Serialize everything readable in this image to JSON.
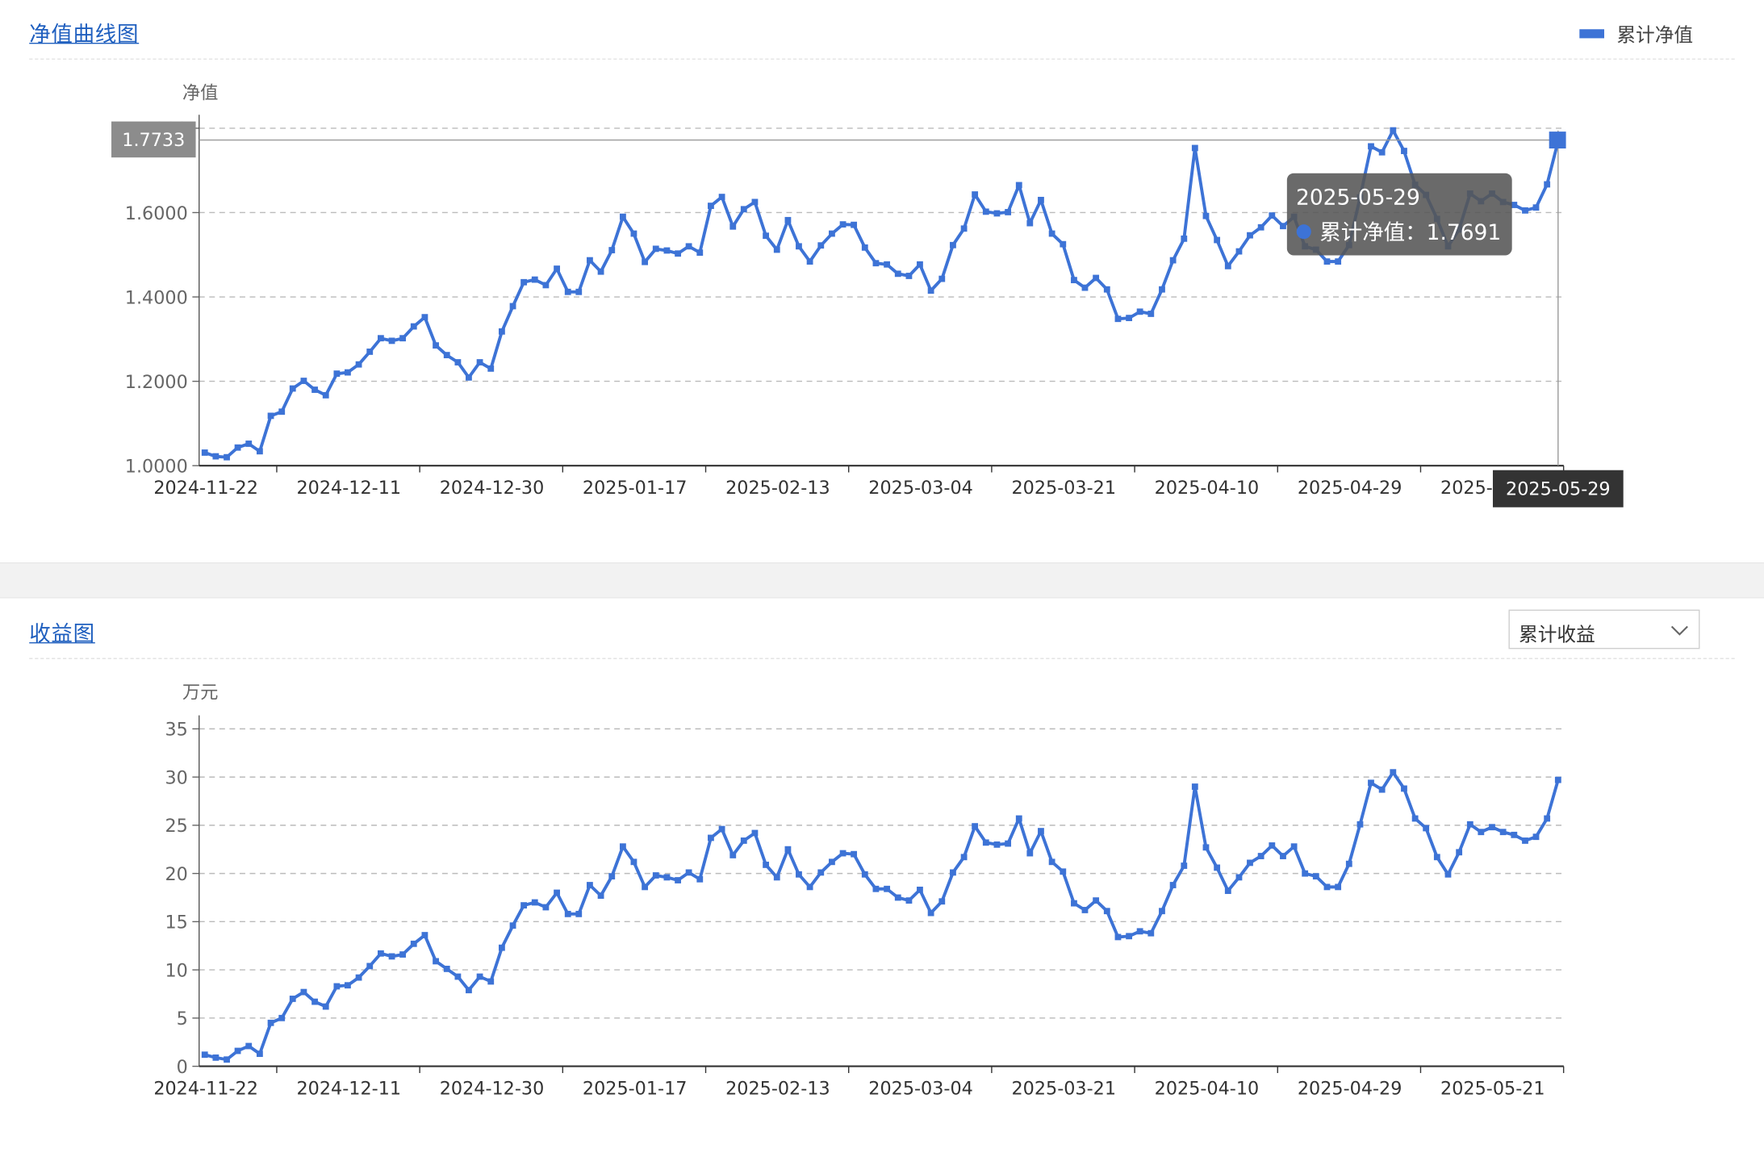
{
  "nav_panel": {
    "title": "净值曲线图",
    "legend_label": "累计净值",
    "y_unit": "净值",
    "y_axis_pointer": "1.7733",
    "x_axis_pointer": "2025-05-29",
    "tooltip": {
      "date": "2025-05-29",
      "series": "累计净值",
      "value": "1.7691"
    }
  },
  "income_panel": {
    "title": "收益图",
    "dropdown_value": "累计收益",
    "y_unit": "万元"
  },
  "colors": {
    "series": "#3d73d6",
    "link": "#1f5fbf",
    "grid": "#bbbbbb"
  },
  "icons": {
    "dropdown": "chevron-down-icon"
  },
  "chart_data": [
    {
      "type": "line",
      "title": "净值曲线图",
      "ylabel": "净值",
      "ylim": [
        1.0,
        1.8
      ],
      "y_ticks": [
        "1.0000",
        "1.2000",
        "1.4000",
        "1.6000",
        "1.8000"
      ],
      "x_ticks": [
        "2024-11-22",
        "2024-12-11",
        "2024-12-30",
        "2025-01-17",
        "2025-02-13",
        "2025-03-04",
        "2025-03-21",
        "2025-04-10",
        "2025-04-29",
        "2025-05-21"
      ],
      "grid": true,
      "legend_position": "top-right",
      "series": [
        {
          "name": "累计净值",
          "values": [
            1.031,
            1.022,
            1.02,
            1.043,
            1.052,
            1.034,
            1.118,
            1.128,
            1.183,
            1.201,
            1.18,
            1.167,
            1.218,
            1.221,
            1.24,
            1.27,
            1.302,
            1.296,
            1.302,
            1.33,
            1.352,
            1.285,
            1.262,
            1.245,
            1.209,
            1.245,
            1.23,
            1.318,
            1.378,
            1.435,
            1.441,
            1.428,
            1.467,
            1.412,
            1.412,
            1.487,
            1.46,
            1.511,
            1.59,
            1.55,
            1.483,
            1.514,
            1.51,
            1.503,
            1.52,
            1.505,
            1.616,
            1.637,
            1.567,
            1.608,
            1.625,
            1.545,
            1.512,
            1.582,
            1.52,
            1.484,
            1.522,
            1.55,
            1.572,
            1.571,
            1.517,
            1.48,
            1.477,
            1.455,
            1.45,
            1.477,
            1.415,
            1.443,
            1.523,
            1.562,
            1.643,
            1.602,
            1.598,
            1.601,
            1.665,
            1.575,
            1.63,
            1.55,
            1.525,
            1.44,
            1.422,
            1.445,
            1.418,
            1.348,
            1.35,
            1.365,
            1.36,
            1.418,
            1.487,
            1.538,
            1.753,
            1.592,
            1.535,
            1.473,
            1.508,
            1.546,
            1.565,
            1.593,
            1.568,
            1.59,
            1.52,
            1.512,
            1.484,
            1.484,
            1.523,
            1.636,
            1.757,
            1.743,
            1.795,
            1.746,
            1.666,
            1.642,
            1.585,
            1.52,
            1.56,
            1.645,
            1.627,
            1.645,
            1.625,
            1.618,
            1.605,
            1.612,
            1.667,
            1.769
          ]
        }
      ]
    },
    {
      "type": "line",
      "title": "收益图",
      "ylabel": "万元",
      "ylim": [
        0,
        35
      ],
      "y_ticks": [
        "0",
        "5",
        "10",
        "15",
        "20",
        "25",
        "30",
        "35"
      ],
      "x_ticks": [
        "2024-11-22",
        "2024-12-11",
        "2024-12-30",
        "2025-01-17",
        "2025-02-13",
        "2025-03-04",
        "2025-03-21",
        "2025-04-10",
        "2025-04-29",
        "2025-05-21"
      ],
      "grid": true,
      "series": [
        {
          "name": "累计收益",
          "values": [
            1.2,
            0.9,
            0.7,
            1.6,
            2.1,
            1.3,
            4.5,
            5.0,
            7.0,
            7.7,
            6.7,
            6.2,
            8.3,
            8.4,
            9.2,
            10.4,
            11.7,
            11.4,
            11.6,
            12.7,
            13.6,
            10.9,
            10.1,
            9.3,
            7.9,
            9.3,
            8.8,
            12.3,
            14.6,
            16.7,
            17.0,
            16.5,
            18.0,
            15.8,
            15.8,
            18.8,
            17.7,
            19.7,
            22.8,
            21.2,
            18.6,
            19.8,
            19.6,
            19.3,
            20.1,
            19.4,
            23.7,
            24.6,
            21.9,
            23.4,
            24.2,
            20.9,
            19.6,
            22.5,
            19.9,
            18.6,
            20.1,
            21.2,
            22.1,
            22.0,
            19.9,
            18.4,
            18.4,
            17.5,
            17.2,
            18.3,
            15.9,
            17.1,
            20.1,
            21.7,
            24.9,
            23.2,
            23.0,
            23.1,
            25.7,
            22.1,
            24.4,
            21.2,
            20.2,
            16.9,
            16.2,
            17.2,
            16.1,
            13.4,
            13.5,
            14.0,
            13.8,
            16.1,
            18.8,
            20.8,
            29.0,
            22.7,
            20.6,
            18.2,
            19.6,
            21.1,
            21.8,
            22.9,
            21.8,
            22.8,
            20.0,
            19.7,
            18.6,
            18.6,
            21.0,
            25.1,
            29.4,
            28.7,
            30.5,
            28.8,
            25.7,
            24.7,
            21.7,
            19.9,
            22.2,
            25.1,
            24.3,
            24.8,
            24.3,
            24.0,
            23.4,
            23.8,
            25.7,
            29.7
          ]
        }
      ]
    }
  ]
}
